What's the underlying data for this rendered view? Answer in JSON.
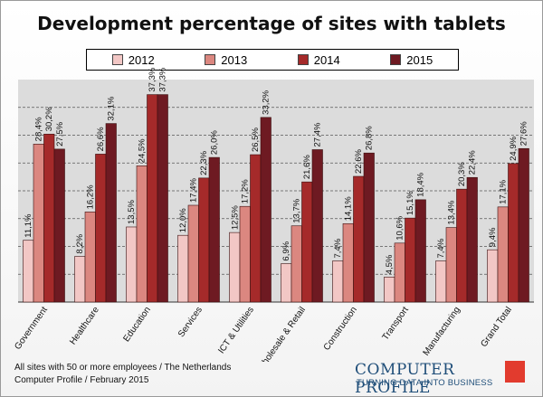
{
  "chart_data": {
    "type": "bar",
    "title": "Development percentage of sites with tablets",
    "categories": [
      "Government",
      "Healthcare",
      "Education",
      "Services",
      "ICT & Utilities",
      "Wholesale & Retail",
      "Construction",
      "Transport",
      "Manufacturing",
      "Grand Total"
    ],
    "series": [
      {
        "name": "2012",
        "color": "#f2c7c5",
        "values": [
          11.1,
          8.2,
          13.5,
          12.0,
          12.5,
          6.9,
          7.4,
          4.5,
          7.4,
          9.4
        ],
        "labels": [
          "11,1%",
          "8,2%",
          "13,5%",
          "12,0%",
          "12,5%",
          "6,9%",
          "7,4%",
          "4,5%",
          "7,4%",
          "9,4%"
        ]
      },
      {
        "name": "2013",
        "color": "#db8780",
        "values": [
          28.4,
          16.2,
          24.5,
          17.4,
          17.2,
          13.7,
          14.1,
          10.6,
          13.4,
          17.1
        ],
        "labels": [
          "28,4%",
          "16,2%",
          "24,5%",
          "17,4%",
          "17,2%",
          "13,7%",
          "14,1%",
          "10,6%",
          "13,4%",
          "17,1%"
        ]
      },
      {
        "name": "2014",
        "color": "#a52a2a",
        "values": [
          30.2,
          26.6,
          37.3,
          22.3,
          26.5,
          21.6,
          22.6,
          15.1,
          20.3,
          24.9
        ],
        "labels": [
          "30,2%",
          "26,6%",
          "37,3%",
          "22,3%",
          "26,5%",
          "21,6%",
          "22,6%",
          "15,1%",
          "20,3%",
          "24,9%"
        ]
      },
      {
        "name": "2015",
        "color": "#6e1a22",
        "values": [
          27.5,
          32.1,
          37.3,
          26.0,
          33.2,
          27.4,
          26.8,
          18.4,
          22.4,
          27.6
        ],
        "labels": [
          "27,5%",
          "32,1%",
          "37,3%",
          "26,0%",
          "33,2%",
          "27,4%",
          "26,8%",
          "18,4%",
          "22,4%",
          "27,6%"
        ]
      }
    ],
    "ylim": [
      0,
      40
    ],
    "grid": true,
    "legend_position": "top"
  },
  "footer": {
    "line1": "All sites with 50 or more employees / The Netherlands",
    "line2": "Computer Profile / February 2015"
  },
  "logo": {
    "name": "COMPUTER PROFILE",
    "tagline": "TURNING DATA INTO BUSINESS"
  }
}
